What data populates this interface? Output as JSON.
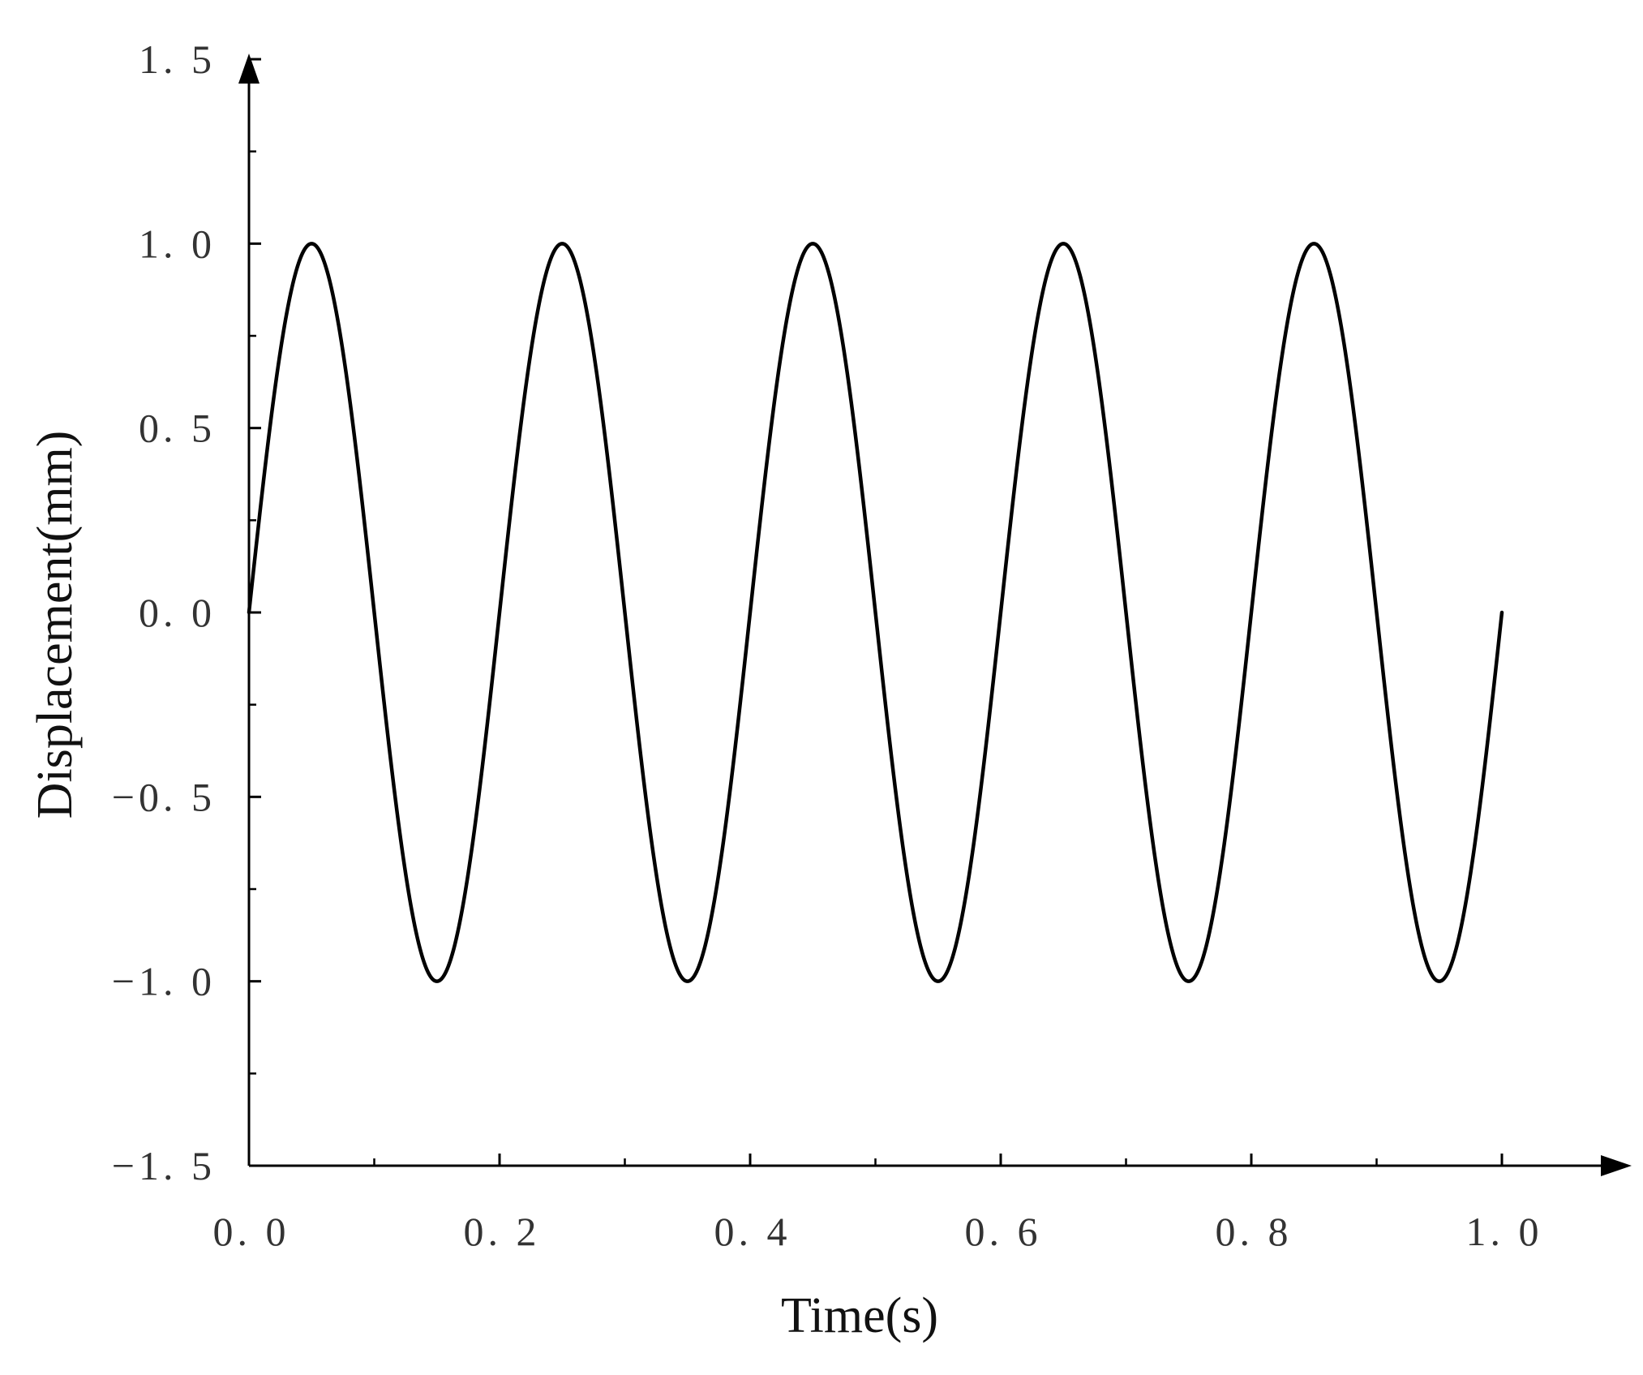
{
  "chart_data": {
    "type": "line",
    "title": "",
    "xlabel": "Time(s)",
    "ylabel": "Displacement(mm)",
    "xlim": [
      0.0,
      1.0
    ],
    "ylim": [
      -1.5,
      1.5
    ],
    "x_ticks": [
      0.0,
      0.2,
      0.4,
      0.6,
      0.8,
      1.0
    ],
    "x_tick_labels": [
      "0. 0",
      "0. 2",
      "0. 4",
      "0. 6",
      "0. 8",
      "1. 0"
    ],
    "y_ticks": [
      1.5,
      1.0,
      0.5,
      0.0,
      -0.5,
      -1.0,
      -1.5
    ],
    "y_tick_labels": [
      "1. 5",
      "1. 0",
      "0. 5",
      "0. 0",
      "−0. 5",
      "−1. 0",
      "−1. 5"
    ],
    "grid": false,
    "legend": "none",
    "series": [
      {
        "color": "#000000",
        "function": "sin(2*pi*5*t)",
        "x": [
          0.0,
          0.05,
          0.1,
          0.15,
          0.2,
          0.25,
          0.3,
          0.35,
          0.4,
          0.45,
          0.5,
          0.55,
          0.6,
          0.65,
          0.7,
          0.75,
          0.8,
          0.85,
          0.9,
          0.95,
          1.0
        ],
        "y": [
          0.0,
          1.0,
          0.0,
          -1.0,
          0.0,
          1.0,
          0.0,
          -1.0,
          0.0,
          1.0,
          0.0,
          -1.0,
          0.0,
          1.0,
          0.0,
          -1.0,
          0.0,
          1.0,
          0.0,
          -1.0,
          0.0
        ]
      }
    ]
  }
}
